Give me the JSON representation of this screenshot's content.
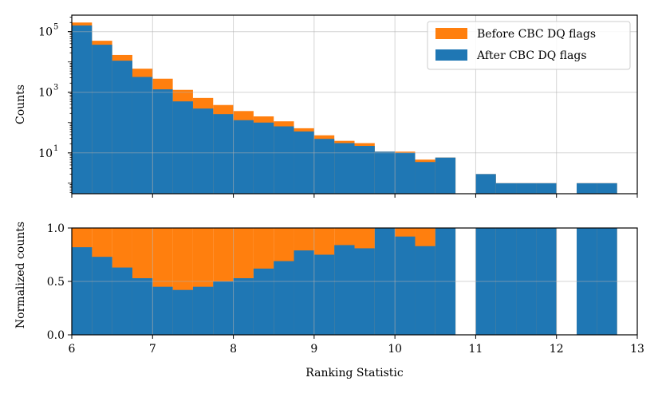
{
  "chart_data": [
    {
      "type": "bar",
      "panel": "top",
      "ylabel": "Counts",
      "yscale": "log",
      "ylim": [
        0.45,
        350000
      ],
      "xlim": [
        6,
        13
      ],
      "grid": true,
      "legend_position": "top-right",
      "yticks": [
        {
          "value": 10,
          "base": "10",
          "exp": "1"
        },
        {
          "value": 1000,
          "base": "10",
          "exp": "3"
        },
        {
          "value": 100000,
          "base": "10",
          "exp": "5"
        }
      ],
      "bin_edges": [
        6.0,
        6.25,
        6.5,
        6.75,
        7.0,
        7.25,
        7.5,
        7.75,
        8.0,
        8.25,
        8.5,
        8.75,
        9.0,
        9.25,
        9.5,
        9.75,
        10.0,
        10.25,
        10.5,
        10.75,
        11.0,
        11.25,
        11.5,
        11.75,
        12.0,
        12.25,
        12.5,
        12.75,
        13.0
      ],
      "series": [
        {
          "name": "Before CBC DQ flags",
          "color": "#ff7f0e",
          "values": [
            200000,
            50000,
            17000,
            6000,
            2800,
            1200,
            650,
            380,
            240,
            160,
            110,
            65,
            38,
            25,
            21,
            11,
            11,
            6,
            7,
            0,
            2,
            1,
            1,
            1,
            0,
            1,
            1,
            0
          ]
        },
        {
          "name": "After CBC DQ flags",
          "color": "#1f77b4",
          "values": [
            160000,
            37000,
            11000,
            3200,
            1250,
            500,
            290,
            190,
            120,
            100,
            75,
            51,
            29,
            21,
            17,
            11,
            10,
            5,
            7,
            0,
            2,
            1,
            1,
            1,
            0,
            1,
            1,
            0
          ]
        }
      ]
    },
    {
      "type": "bar",
      "panel": "bottom",
      "xlabel": "Ranking Statistic",
      "ylabel": "Normalized counts",
      "ylim": [
        0,
        1.0
      ],
      "xlim": [
        6,
        13
      ],
      "grid": true,
      "xticks": [
        "6",
        "7",
        "8",
        "9",
        "10",
        "11",
        "12",
        "13"
      ],
      "yticks": [
        "0.0",
        "0.5",
        "1.0"
      ],
      "bin_edges": [
        6.0,
        6.25,
        6.5,
        6.75,
        7.0,
        7.25,
        7.5,
        7.75,
        8.0,
        8.25,
        8.5,
        8.75,
        9.0,
        9.25,
        9.5,
        9.75,
        10.0,
        10.25,
        10.5,
        10.75,
        11.0,
        11.25,
        11.5,
        11.75,
        12.0,
        12.25,
        12.5,
        12.75,
        13.0
      ],
      "series": [
        {
          "name": "Before CBC DQ flags",
          "color": "#ff7f0e",
          "values": [
            1,
            1,
            1,
            1,
            1,
            1,
            1,
            1,
            1,
            1,
            1,
            1,
            1,
            1,
            1,
            1,
            1,
            1,
            1,
            0,
            1,
            1,
            1,
            1,
            0,
            1,
            1,
            0
          ]
        },
        {
          "name": "After CBC DQ flags",
          "color": "#1f77b4",
          "values": [
            0.82,
            0.73,
            0.63,
            0.53,
            0.45,
            0.42,
            0.45,
            0.5,
            0.53,
            0.62,
            0.69,
            0.79,
            0.75,
            0.84,
            0.81,
            1.0,
            0.92,
            0.83,
            1.0,
            0,
            1,
            1,
            1,
            1,
            0,
            1,
            1,
            0
          ]
        }
      ]
    }
  ]
}
